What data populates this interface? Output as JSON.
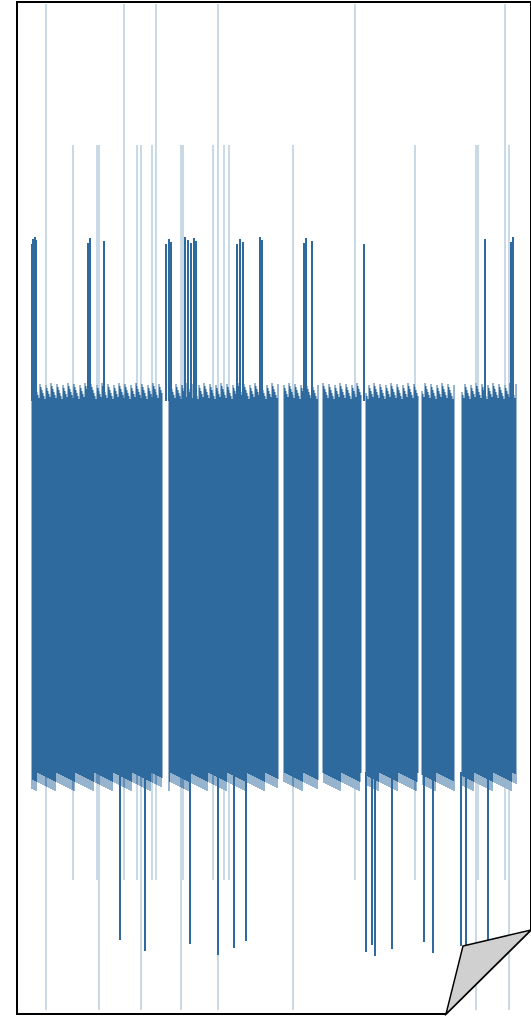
{
  "document": {
    "kind": "waveform-page",
    "stroke_color": "#2f6a9e",
    "fold_fill": "#d0d0d0",
    "page_fill": "#ffffff",
    "border_color": "#000000"
  },
  "waveform": {
    "description_visible_text": "",
    "bands": {
      "dense_core": {
        "top_level": 0.385,
        "bottom_level": 0.77
      },
      "upper_spikes_level": 0.24,
      "lower_spikes_level": 0.925
    }
  }
}
